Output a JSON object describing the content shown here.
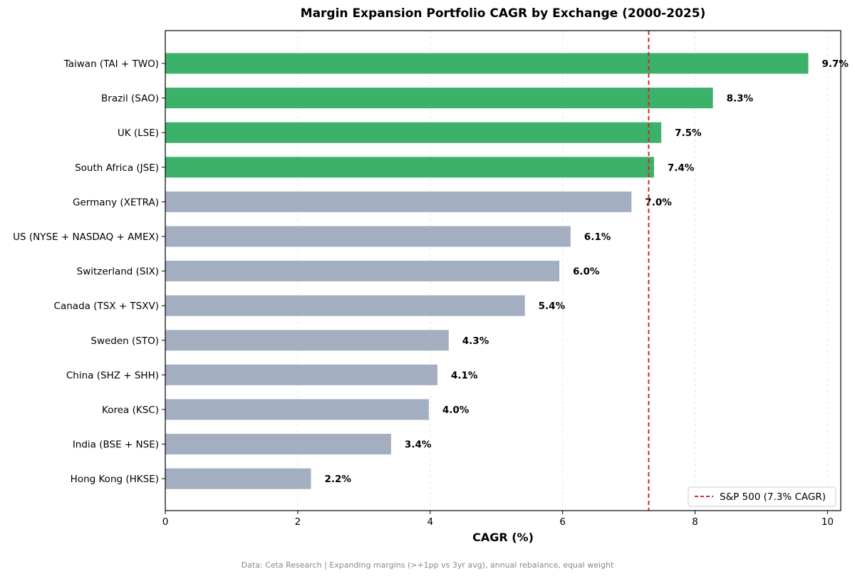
{
  "chart_data": {
    "type": "bar",
    "orientation": "horizontal",
    "title": "Margin Expansion Portfolio CAGR by Exchange (2000-2025)",
    "xlabel": "CAGR (%)",
    "ylabel": "",
    "xlim": [
      0,
      10.2
    ],
    "xticks": [
      0,
      2,
      4,
      6,
      8,
      10
    ],
    "grid": "x dashed",
    "categories": [
      "Taiwan (TAI + TWO)",
      "Brazil (SAO)",
      "UK (LSE)",
      "South Africa (JSE)",
      "Germany (XETRA)",
      "US (NYSE + NASDAQ + AMEX)",
      "Switzerland (SIX)",
      "Canada (TSX + TSXV)",
      "Sweden (STO)",
      "China (SHZ + SHH)",
      "Korea (KSC)",
      "India (BSE + NSE)",
      "Hong Kong (HKSE)"
    ],
    "values": [
      9.71,
      8.27,
      7.49,
      7.38,
      7.04,
      6.12,
      5.95,
      5.43,
      4.28,
      4.11,
      3.98,
      3.41,
      2.2
    ],
    "data_labels": [
      "9.7%",
      "8.3%",
      "7.5%",
      "7.4%",
      "7.0%",
      "6.1%",
      "6.0%",
      "5.4%",
      "4.3%",
      "4.1%",
      "4.0%",
      "3.4%",
      "2.2%"
    ],
    "highlight_colors": [
      "#3bb16a",
      "#3bb16a",
      "#3bb16a",
      "#3bb16a",
      "#a3aec1",
      "#a3aec1",
      "#a3aec1",
      "#a3aec1",
      "#a3aec1",
      "#a3aec1",
      "#a3aec1",
      "#a3aec1",
      "#a3aec1"
    ],
    "reference_line": {
      "name": "S&P 500 (7.3% CAGR)",
      "value": 7.3,
      "color": "#d62728",
      "style": "dashed"
    },
    "legend": {
      "placement": "lower-right"
    },
    "footnote": "Data: Ceta Research | Expanding margins (>+1pp vs 3yr avg), annual rebalance, equal weight"
  }
}
